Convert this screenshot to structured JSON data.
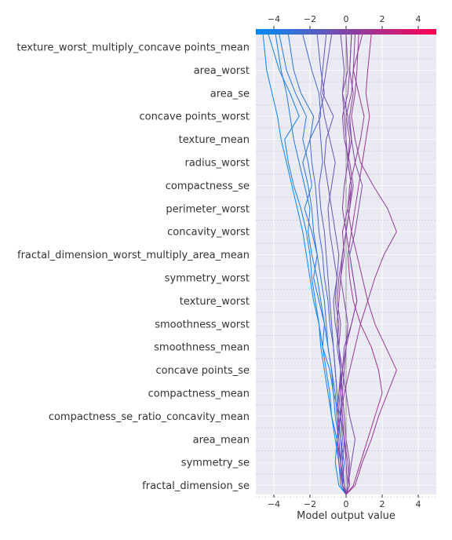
{
  "chart_data": {
    "type": "line",
    "subtype": "shap-decision-plot",
    "xlabel": "Model output value",
    "xlim": [
      -5,
      5
    ],
    "xticks": [
      -4,
      -2,
      0,
      2,
      4
    ],
    "xtick_labels": [
      "−4",
      "−2",
      "0",
      "2",
      "4"
    ],
    "base_value": 0,
    "colorbar": {
      "position": "top",
      "range": [
        -5,
        5
      ],
      "color_low": "#008bfb",
      "color_high": "#ff0052"
    },
    "grid": true,
    "background_color": "#eaeaf2",
    "features": [
      "texture_worst_multiply_concave points_mean",
      "area_worst",
      "area_se",
      "concave points_worst",
      "texture_mean",
      "radius_worst",
      "compactness_se",
      "perimeter_worst",
      "concavity_worst",
      "fractal_dimension_worst_multiply_area_mean",
      "symmetry_worst",
      "texture_worst",
      "smoothness_worst",
      "smoothness_mean",
      "concave points_se",
      "compactness_mean",
      "compactness_se_ratio_concavity_mean",
      "area_mean",
      "symmetry_se",
      "fractal_dimension_se"
    ],
    "series": [
      {
        "final_output": -4.3,
        "values": [
          0.0,
          -0.3,
          -0.4,
          -0.6,
          -0.8,
          -1.0,
          -1.2,
          -1.4,
          -1.5,
          -1.7,
          -1.9,
          -2.0,
          -2.2,
          -2.5,
          -2.9,
          -3.2,
          -3.4,
          -2.6,
          -3.1,
          -3.7,
          -4.3
        ]
      },
      {
        "final_output": -3.7,
        "values": [
          0.0,
          -0.2,
          -0.3,
          -0.5,
          -0.3,
          -0.7,
          -0.9,
          -1.3,
          -1.2,
          -1.5,
          -1.8,
          -1.6,
          -1.9,
          -2.3,
          -1.9,
          -2.1,
          -2.4,
          -2.2,
          -2.8,
          -3.3,
          -3.7
        ]
      },
      {
        "final_output": -4.6,
        "values": [
          0.0,
          -0.4,
          -0.6,
          -0.5,
          -0.8,
          -0.9,
          -1.1,
          -1.3,
          -1.5,
          -1.8,
          -2.0,
          -2.2,
          -2.4,
          -2.7,
          -3.0,
          -3.3,
          -3.6,
          -3.8,
          -4.1,
          -4.4,
          -4.6
        ]
      },
      {
        "final_output": -3.9,
        "values": [
          0.0,
          -0.1,
          -0.3,
          -0.4,
          -0.6,
          -0.7,
          -0.8,
          -1.0,
          -1.2,
          -1.4,
          -1.6,
          -1.9,
          -2.1,
          -2.0,
          -2.3,
          -2.6,
          -2.9,
          -3.1,
          -3.3,
          -3.6,
          -3.9
        ]
      },
      {
        "final_output": -3.2,
        "values": [
          0.0,
          -0.2,
          -0.1,
          -0.3,
          -0.5,
          -0.6,
          -0.8,
          -1.0,
          -1.1,
          -1.2,
          -1.4,
          -1.6,
          -1.8,
          -1.9,
          -2.1,
          -2.4,
          -2.0,
          -1.8,
          -2.5,
          -2.9,
          -3.2
        ]
      },
      {
        "final_output": -2.4,
        "values": [
          0.0,
          -0.1,
          -0.2,
          -0.3,
          -0.4,
          -0.5,
          -0.6,
          -0.7,
          -0.9,
          -1.0,
          -1.2,
          -1.3,
          -1.5,
          -1.6,
          -1.7,
          -1.9,
          -2.0,
          -1.4,
          -1.5,
          -1.9,
          -2.4
        ]
      },
      {
        "final_output": -1.6,
        "values": [
          0.0,
          -0.2,
          -0.3,
          -0.5,
          -0.4,
          -0.5,
          -0.6,
          -0.7,
          -0.8,
          -0.9,
          -1.0,
          -1.1,
          -1.2,
          -1.4,
          -1.5,
          -1.3,
          -1.4,
          -1.5,
          -1.2,
          -1.4,
          -1.6
        ]
      },
      {
        "final_output": 0.5,
        "values": [
          0.0,
          0.1,
          0.0,
          -0.1,
          -0.2,
          -0.3,
          -0.3,
          -0.4,
          -0.5,
          -0.4,
          -0.3,
          -0.1,
          -0.2,
          0.1,
          0.3,
          0.1,
          0.2,
          0.0,
          0.3,
          0.4,
          0.5
        ]
      },
      {
        "final_output": -0.8,
        "values": [
          0.0,
          -0.1,
          -0.2,
          -0.1,
          -0.3,
          -0.4,
          -0.3,
          -0.5,
          -0.4,
          -0.6,
          -0.5,
          -0.4,
          -0.6,
          -0.8,
          -1.0,
          -1.2,
          -1.1,
          -0.7,
          -1.3,
          -1.1,
          -0.8
        ]
      },
      {
        "final_output": 0.3,
        "values": [
          0.0,
          0.2,
          0.1,
          -0.1,
          -0.2,
          -0.3,
          -0.2,
          -0.4,
          -0.3,
          -0.5,
          -0.4,
          -0.2,
          0.0,
          0.2,
          0.4,
          0.2,
          -0.1,
          -0.2,
          0.1,
          0.2,
          0.3
        ]
      },
      {
        "final_output": -1.1,
        "values": [
          0.0,
          -0.2,
          -0.3,
          -0.2,
          -0.3,
          -0.2,
          -0.3,
          -0.4,
          -0.6,
          -0.7,
          -0.5,
          -0.7,
          -0.9,
          -1.0,
          -0.8,
          -0.6,
          -0.9,
          -1.2,
          -1.4,
          -1.3,
          -1.1
        ]
      },
      {
        "final_output": -0.3,
        "values": [
          0.0,
          0.1,
          0.3,
          0.5,
          0.2,
          0.0,
          -0.2,
          -0.1,
          0.3,
          0.6,
          0.4,
          0.2,
          0.5,
          0.7,
          0.9,
          0.5,
          0.3,
          0.1,
          -0.2,
          -0.1,
          -0.3
        ]
      },
      {
        "final_output": 0.0,
        "values": [
          0.0,
          0.1,
          0.2,
          0.0,
          -0.1,
          -0.2,
          -0.1,
          0.0,
          0.1,
          -0.1,
          -0.3,
          -0.2,
          0.0,
          0.2,
          0.3,
          0.1,
          0.0,
          -0.1,
          -0.2,
          0.1,
          0.0
        ]
      },
      {
        "final_output": 0.9,
        "values": [
          0.0,
          0.5,
          0.9,
          1.4,
          1.8,
          2.3,
          2.8,
          2.2,
          1.6,
          1.2,
          0.9,
          0.6,
          0.3,
          0.1,
          0.2,
          0.5,
          0.8,
          1.0,
          0.7,
          0.4,
          0.9
        ]
      },
      {
        "final_output": 1.4,
        "values": [
          0.0,
          0.4,
          0.8,
          1.2,
          1.6,
          2.0,
          1.8,
          1.4,
          0.8,
          0.4,
          0.2,
          0.1,
          0.3,
          0.5,
          0.7,
          0.9,
          1.1,
          1.3,
          1.1,
          1.2,
          1.4
        ]
      },
      {
        "final_output": 0.7,
        "values": [
          0.0,
          -0.2,
          -0.4,
          -0.5,
          -0.3,
          -0.1,
          0.2,
          0.5,
          0.8,
          1.2,
          1.6,
          2.1,
          2.8,
          2.3,
          1.5,
          0.8,
          0.5,
          0.3,
          0.5,
          0.6,
          0.7
        ]
      },
      {
        "final_output": 0.3,
        "values": [
          0.0,
          -0.1,
          -0.3,
          -0.4,
          -0.5,
          -0.4,
          -0.2,
          0.0,
          0.3,
          0.6,
          0.4,
          0.2,
          0.0,
          -0.2,
          -0.1,
          0.1,
          0.3,
          0.2,
          0.4,
          0.2,
          0.3
        ]
      }
    ]
  }
}
